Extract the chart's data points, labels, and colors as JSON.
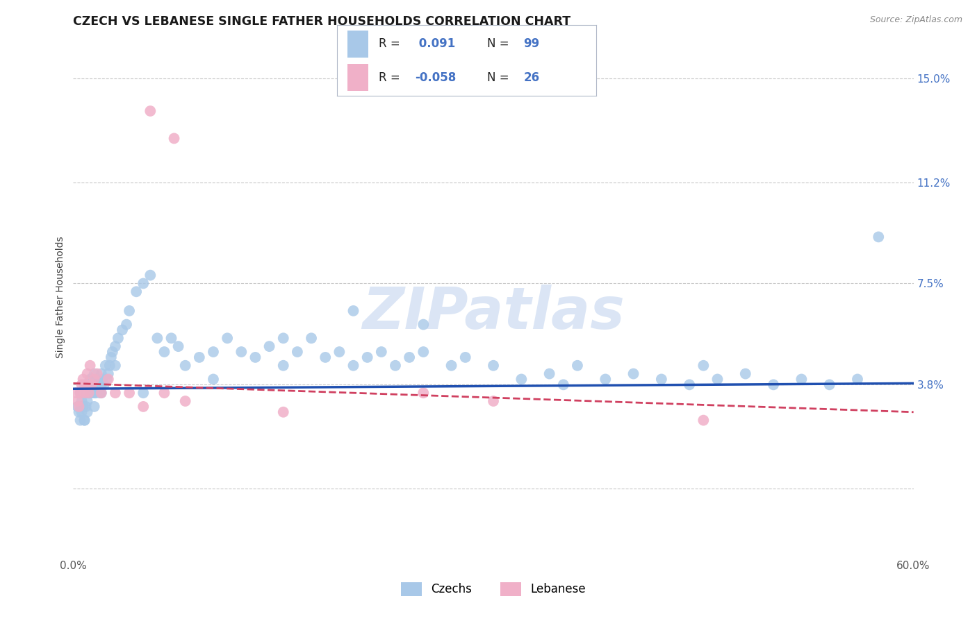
{
  "title": "CZECH VS LEBANESE SINGLE FATHER HOUSEHOLDS CORRELATION CHART",
  "source": "Source: ZipAtlas.com",
  "ylabel": "Single Father Households",
  "xmin": 0.0,
  "xmax": 60.0,
  "ymin": -2.5,
  "ymax": 16.5,
  "czech_R": 0.091,
  "czech_N": 99,
  "lebanese_R": -0.058,
  "lebanese_N": 26,
  "blue_color": "#a8c8e8",
  "pink_color": "#f0b0c8",
  "blue_line_color": "#2050b0",
  "pink_line_color": "#d04060",
  "watermark_color": "#c8d8f0",
  "background_color": "#ffffff",
  "grid_color": "#c8c8c8",
  "ytick_vals": [
    0.0,
    3.8,
    7.5,
    11.2,
    15.0
  ],
  "ytick_labels_right": [
    "",
    "3.8%",
    "7.5%",
    "11.2%",
    "15.0%"
  ],
  "xtick_vals": [
    0,
    10,
    20,
    30,
    40,
    50,
    60
  ],
  "xtick_labels": [
    "0.0%",
    "",
    "",
    "",
    "",
    "",
    "60.0%"
  ],
  "title_fontsize": 12.5,
  "source_fontsize": 9,
  "axis_label_fontsize": 10,
  "tick_fontsize": 11,
  "legend_fontsize": 12,
  "watermark_text": "ZIPatlas",
  "watermark_fontsize": 60,
  "czech_x": [
    0.3,
    0.4,
    0.5,
    0.5,
    0.6,
    0.6,
    0.7,
    0.7,
    0.8,
    0.8,
    0.9,
    0.9,
    1.0,
    1.0,
    1.0,
    1.1,
    1.1,
    1.2,
    1.2,
    1.3,
    1.3,
    1.4,
    1.5,
    1.5,
    1.6,
    1.6,
    1.7,
    1.8,
    1.9,
    2.0,
    2.0,
    2.1,
    2.2,
    2.3,
    2.4,
    2.5,
    2.6,
    2.7,
    2.8,
    3.0,
    3.2,
    3.5,
    3.8,
    4.0,
    4.5,
    5.0,
    5.5,
    6.0,
    6.5,
    7.0,
    7.5,
    8.0,
    9.0,
    10.0,
    11.0,
    12.0,
    13.0,
    14.0,
    15.0,
    16.0,
    17.0,
    18.0,
    19.0,
    20.0,
    21.0,
    22.0,
    23.0,
    24.0,
    25.0,
    27.0,
    28.0,
    30.0,
    32.0,
    34.0,
    36.0,
    38.0,
    40.0,
    42.0,
    44.0,
    46.0,
    48.0,
    50.0,
    52.0,
    54.0,
    56.0,
    45.0,
    35.0,
    25.0,
    20.0,
    15.0,
    10.0,
    5.0,
    3.0,
    2.0,
    1.5,
    1.0,
    0.8,
    0.6,
    57.5
  ],
  "czech_y": [
    3.0,
    2.8,
    2.5,
    3.5,
    3.2,
    2.8,
    3.0,
    3.5,
    3.8,
    2.5,
    3.5,
    3.0,
    3.8,
    3.2,
    2.8,
    3.5,
    3.8,
    3.5,
    4.0,
    3.5,
    4.0,
    3.8,
    3.5,
    4.2,
    4.0,
    3.5,
    4.0,
    3.8,
    3.5,
    3.8,
    4.2,
    4.0,
    3.8,
    4.5,
    4.0,
    4.2,
    4.5,
    4.8,
    5.0,
    5.2,
    5.5,
    5.8,
    6.0,
    6.5,
    7.2,
    7.5,
    7.8,
    5.5,
    5.0,
    5.5,
    5.2,
    4.5,
    4.8,
    5.0,
    5.5,
    5.0,
    4.8,
    5.2,
    5.5,
    5.0,
    5.5,
    4.8,
    5.0,
    4.5,
    4.8,
    5.0,
    4.5,
    4.8,
    5.0,
    4.5,
    4.8,
    4.5,
    4.0,
    4.2,
    4.5,
    4.0,
    4.2,
    4.0,
    3.8,
    4.0,
    4.2,
    3.8,
    4.0,
    3.8,
    4.0,
    4.5,
    3.8,
    6.0,
    6.5,
    4.5,
    4.0,
    3.5,
    4.5,
    3.5,
    3.0,
    3.5,
    2.5,
    3.0,
    9.2
  ],
  "lebanese_x": [
    0.2,
    0.3,
    0.4,
    0.5,
    0.6,
    0.7,
    0.8,
    0.9,
    1.0,
    1.1,
    1.2,
    1.3,
    1.5,
    1.7,
    2.0,
    2.5,
    3.0,
    4.0,
    5.0,
    6.5,
    8.0,
    15.0,
    25.0,
    30.0,
    45.0,
    5.5
  ],
  "lebanese_y": [
    3.5,
    3.2,
    3.0,
    3.5,
    3.8,
    4.0,
    3.5,
    3.8,
    4.2,
    3.5,
    4.5,
    3.8,
    4.0,
    4.2,
    3.5,
    4.0,
    3.5,
    3.5,
    3.0,
    3.5,
    3.2,
    2.8,
    3.5,
    3.2,
    2.5,
    13.8
  ]
}
